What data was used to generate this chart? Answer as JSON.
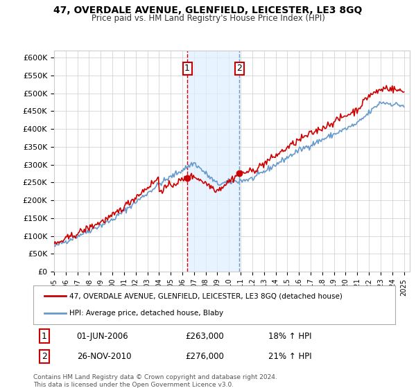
{
  "title": "47, OVERDALE AVENUE, GLENFIELD, LEICESTER, LE3 8GQ",
  "subtitle": "Price paid vs. HM Land Registry's House Price Index (HPI)",
  "legend_line1": "47, OVERDALE AVENUE, GLENFIELD, LEICESTER, LE3 8GQ (detached house)",
  "legend_line2": "HPI: Average price, detached house, Blaby",
  "annotation1": {
    "label": "1",
    "date": "01-JUN-2006",
    "price": "£263,000",
    "hpi": "18% ↑ HPI"
  },
  "annotation2": {
    "label": "2",
    "date": "26-NOV-2010",
    "price": "£276,000",
    "hpi": "21% ↑ HPI"
  },
  "footer": "Contains HM Land Registry data © Crown copyright and database right 2024.\nThis data is licensed under the Open Government Licence v3.0.",
  "price_line_color": "#cc0000",
  "hpi_line_color": "#6699cc",
  "vline_color": "#cc0000",
  "vline2_color": "#6699cc",
  "shade_color": "#ddeeff",
  "background_color": "#ffffff",
  "grid_color": "#cccccc",
  "ylim": [
    0,
    620000
  ],
  "yticks": [
    0,
    50000,
    100000,
    150000,
    200000,
    250000,
    300000,
    350000,
    400000,
    450000,
    500000,
    550000,
    600000
  ],
  "year_start": 1995,
  "year_end": 2025,
  "marker1_year": 2006.42,
  "marker2_year": 2010.9
}
